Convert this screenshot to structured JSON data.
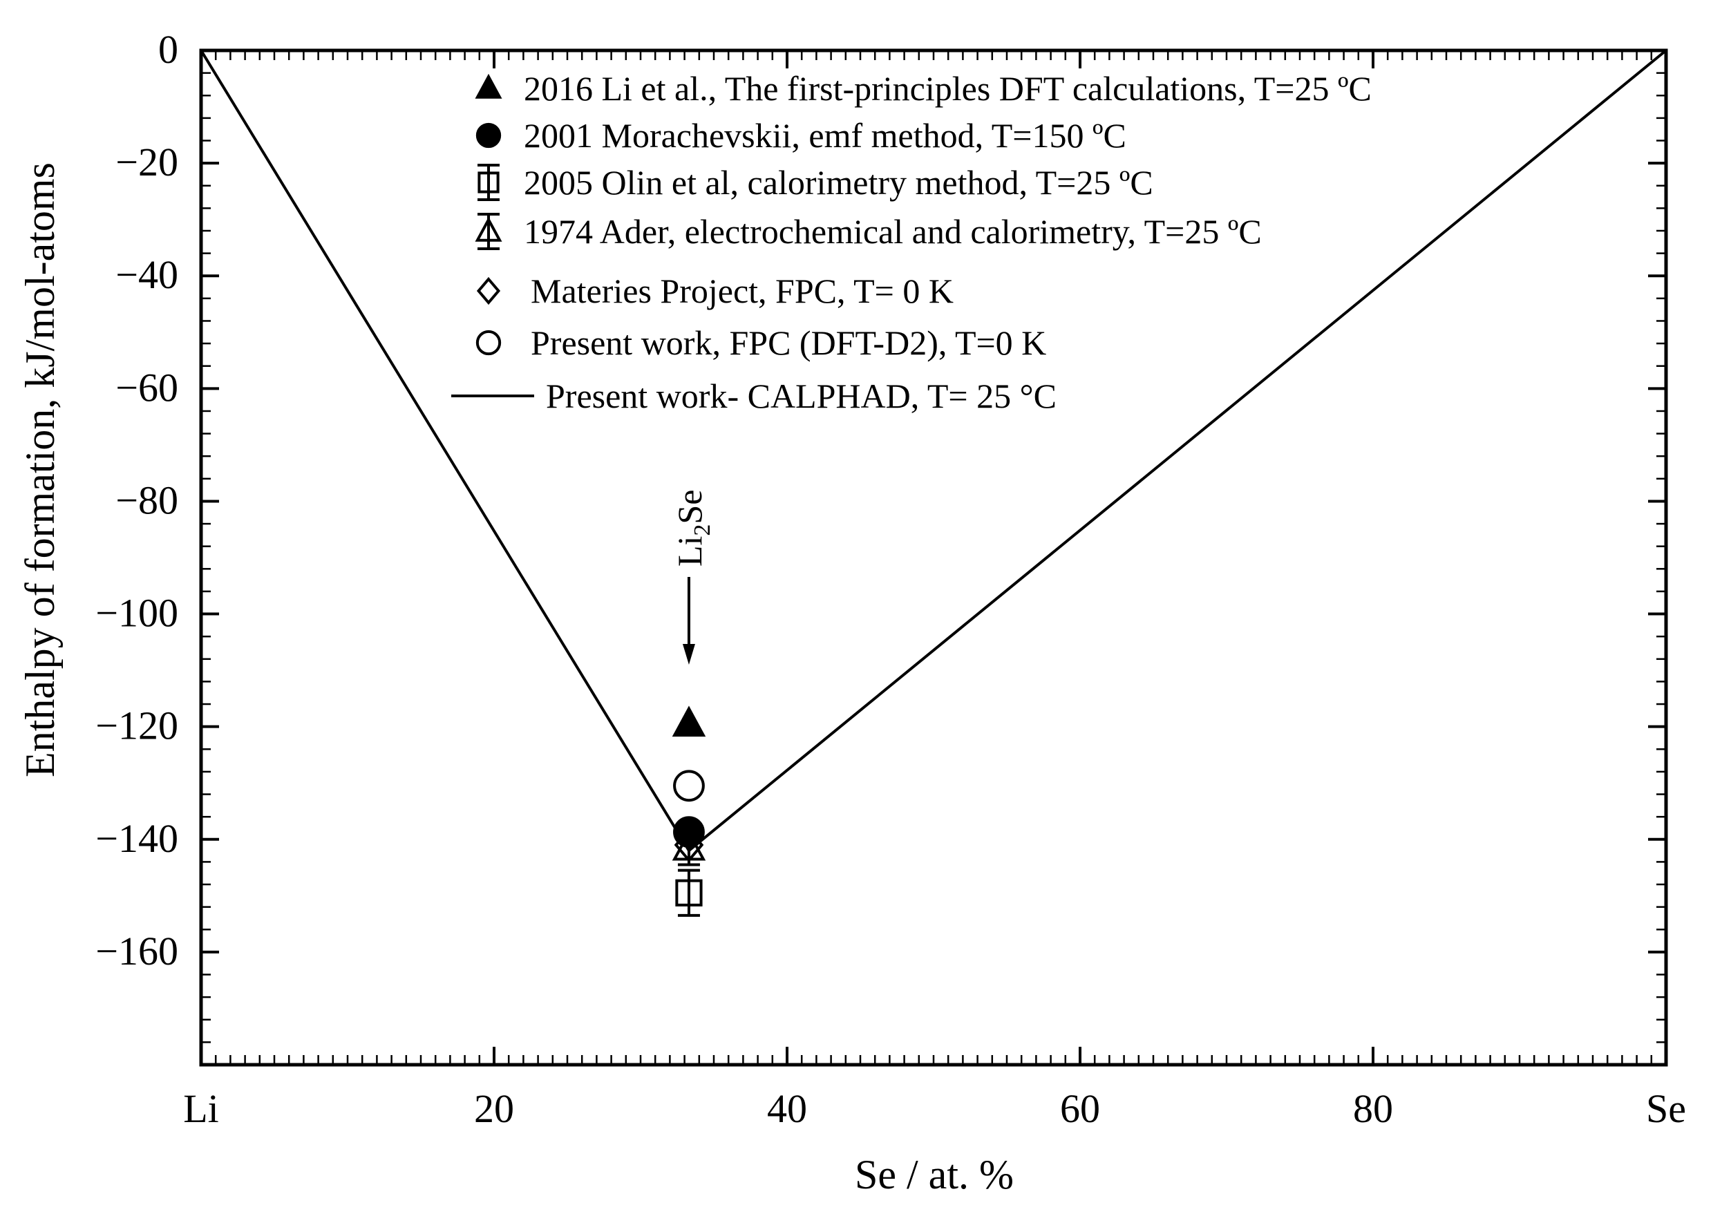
{
  "chart_data": {
    "type": "scatter",
    "title": "",
    "xlabel": "Se / at. %",
    "ylabel": "Enthalpy of formation, kJ/mol-atoms",
    "xlim": [
      0,
      100
    ],
    "ylim": [
      -180,
      0
    ],
    "x_ticks": [
      {
        "value": 0,
        "label": "Li"
      },
      {
        "value": 20,
        "label": "20"
      },
      {
        "value": 40,
        "label": "40"
      },
      {
        "value": 60,
        "label": "60"
      },
      {
        "value": 80,
        "label": "80"
      },
      {
        "value": 100,
        "label": "Se"
      }
    ],
    "y_ticks": [
      {
        "value": 0,
        "label": "0"
      },
      {
        "value": -20,
        "label": "−20"
      },
      {
        "value": -40,
        "label": "−40"
      },
      {
        "value": -60,
        "label": "−60"
      },
      {
        "value": -80,
        "label": "−80"
      },
      {
        "value": -100,
        "label": "−100"
      },
      {
        "value": -120,
        "label": "−120"
      },
      {
        "value": -140,
        "label": "−140"
      },
      {
        "value": -160,
        "label": "−160"
      }
    ],
    "grid": false,
    "legend_position": "top-center",
    "series": [
      {
        "name": "2016 Li et al., The first-principles DFT calculations, T=25 ºC",
        "marker": "triangle-filled",
        "points": [
          {
            "x": 33.3,
            "y": -119.5
          }
        ]
      },
      {
        "name": "2001 Morachevskii, emf method, T=150 ºC",
        "marker": "circle-filled",
        "points": [
          {
            "x": 33.3,
            "y": -138.7
          }
        ]
      },
      {
        "name": "2005 Olin et al, calorimetry method, T=25 ºC",
        "marker": "square-open",
        "points": [
          {
            "x": 33.3,
            "y": -149.5,
            "err": 4
          }
        ]
      },
      {
        "name": "1974 Ader, electrochemical and calorimetry, T=25 ºC",
        "marker": "triangle-open",
        "points": [
          {
            "x": 33.3,
            "y": -141.5,
            "err": 3
          }
        ]
      },
      {
        "name": "Materies Project, FPC, T= 0 K",
        "marker": "diamond-open",
        "points": [
          {
            "x": 33.3,
            "y": -141.0
          }
        ]
      },
      {
        "name": "Present work, FPC (DFT-D2), T=0 K",
        "marker": "circle-open",
        "points": [
          {
            "x": 33.3,
            "y": -130.5
          }
        ]
      },
      {
        "name": "Present work- CALPHAD, T= 25 °C",
        "marker": "line",
        "points": [
          {
            "x": 0,
            "y": 0
          },
          {
            "x": 33.3,
            "y": -142.0
          },
          {
            "x": 100,
            "y": 0
          }
        ]
      }
    ],
    "annotations": [
      {
        "text": "Li2Se",
        "text_main": "Li",
        "text_sub": "2",
        "text_tail": "Se",
        "x": 33.3,
        "arrow_to_y": -109
      }
    ]
  }
}
